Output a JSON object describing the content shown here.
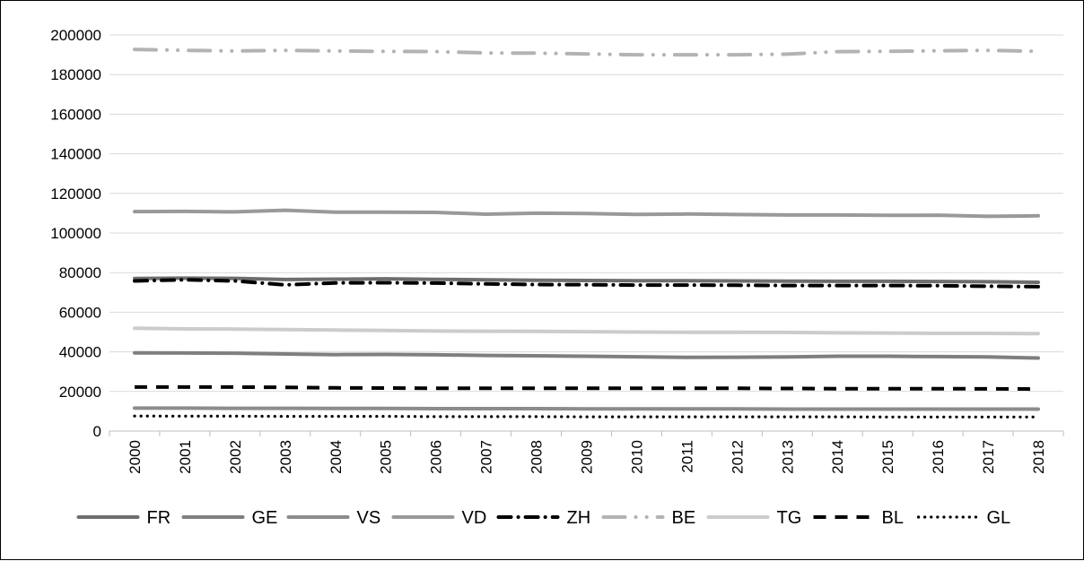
{
  "chart_data": {
    "type": "line",
    "title": "",
    "xlabel": "",
    "ylabel": "",
    "ylim": [
      0,
      200000
    ],
    "yticks": [
      "0",
      "20000",
      "40000",
      "60000",
      "80000",
      "100000",
      "120000",
      "140000",
      "160000",
      "180000",
      "200000"
    ],
    "x": [
      "2000",
      "2001",
      "2002",
      "2003",
      "2004",
      "2005",
      "2006",
      "2007",
      "2008",
      "2009",
      "2010",
      "2011",
      "2012",
      "2013",
      "2014",
      "2015",
      "2016",
      "2017",
      "2018"
    ],
    "grid": true,
    "legend_position": "bottom",
    "series": [
      {
        "name": "FR",
        "color": "#6e6e6e",
        "dash": "solid",
        "values": [
          77000,
          77200,
          77100,
          76500,
          76700,
          76900,
          76600,
          76400,
          76100,
          76000,
          75900,
          75900,
          75800,
          75700,
          75600,
          75600,
          75500,
          75400,
          75100
        ]
      },
      {
        "name": "GE",
        "color": "#7f7f7f",
        "dash": "solid",
        "values": [
          39500,
          39400,
          39300,
          38900,
          38600,
          38700,
          38500,
          38200,
          38000,
          37800,
          37500,
          37200,
          37300,
          37400,
          37800,
          37800,
          37600,
          37400,
          36900
        ]
      },
      {
        "name": "VS",
        "color": "#8c8c8c",
        "dash": "solid",
        "values": [
          11600,
          11600,
          11500,
          11500,
          11400,
          11400,
          11300,
          11300,
          11300,
          11200,
          11200,
          11200,
          11200,
          11100,
          11100,
          11100,
          11100,
          11100,
          11100
        ]
      },
      {
        "name": "VD",
        "color": "#999999",
        "dash": "solid",
        "values": [
          110800,
          110900,
          110700,
          111500,
          110500,
          110500,
          110400,
          109500,
          110000,
          109800,
          109400,
          109600,
          109300,
          109100,
          109100,
          108900,
          109000,
          108400,
          108700
        ]
      },
      {
        "name": "ZH",
        "color": "#000000",
        "dash": "dashdot",
        "values": [
          75800,
          76400,
          75800,
          73800,
          74800,
          74900,
          74700,
          74300,
          74000,
          73900,
          73700,
          73700,
          73600,
          73500,
          73500,
          73500,
          73400,
          73100,
          72900
        ]
      },
      {
        "name": "BE",
        "color": "#b3b3b3",
        "dash": "dashdotdot",
        "values": [
          192700,
          192200,
          191900,
          192200,
          191900,
          191700,
          191600,
          190900,
          190800,
          190400,
          190000,
          190000,
          190000,
          190300,
          191600,
          191700,
          192000,
          192200,
          191700
        ]
      },
      {
        "name": "TG",
        "color": "#cccccc",
        "dash": "solid",
        "values": [
          51900,
          51600,
          51500,
          51200,
          51000,
          50800,
          50500,
          50400,
          50300,
          50200,
          50000,
          49900,
          49900,
          49800,
          49600,
          49500,
          49300,
          49300,
          49200
        ]
      },
      {
        "name": "BL",
        "color": "#000000",
        "dash": "dash",
        "values": [
          22200,
          22200,
          22200,
          22100,
          21800,
          21700,
          21600,
          21600,
          21600,
          21600,
          21600,
          21600,
          21600,
          21500,
          21400,
          21400,
          21400,
          21300,
          21200
        ]
      },
      {
        "name": "GL",
        "color": "#000000",
        "dash": "dot",
        "values": [
          7600,
          7500,
          7500,
          7400,
          7400,
          7400,
          7300,
          7300,
          7300,
          7200,
          7200,
          7200,
          7200,
          7200,
          7200,
          7100,
          7100,
          7100,
          7100
        ]
      }
    ]
  }
}
